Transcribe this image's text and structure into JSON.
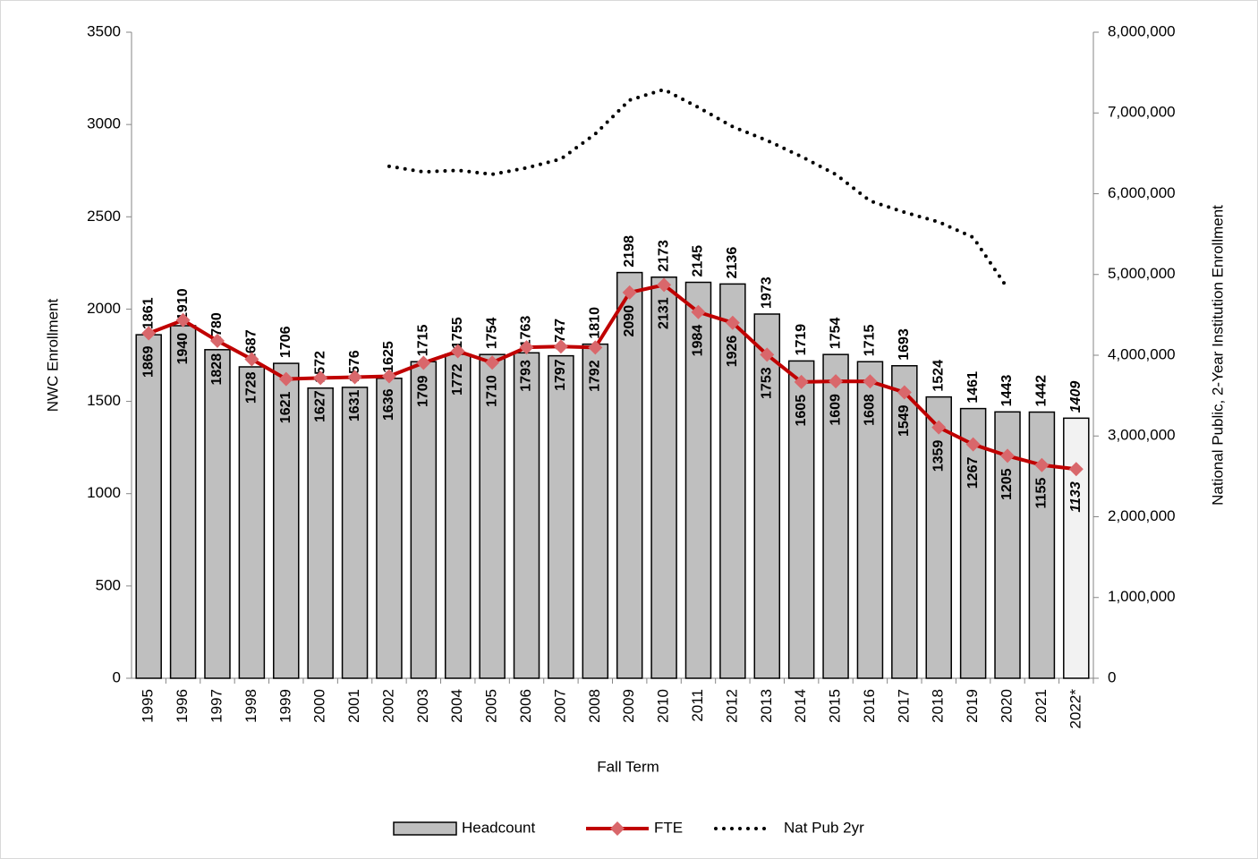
{
  "chart_data": {
    "type": "combo",
    "x_label": "Fall Term",
    "y_label": "NWC Enrollment",
    "y2_label": "National Public, 2-Year Institution Enrollment",
    "categories": [
      "1995",
      "1996",
      "1997",
      "1998",
      "1999",
      "2000",
      "2001",
      "2002",
      "2003",
      "2004",
      "2005",
      "2006",
      "2007",
      "2008",
      "2009",
      "2010",
      "2011",
      "2012",
      "2013",
      "2014",
      "2015",
      "2016",
      "2017",
      "2018",
      "2019",
      "2020",
      "2021",
      "2022*"
    ],
    "ylim": [
      0,
      3500
    ],
    "yticks": [
      0,
      500,
      1000,
      1500,
      2000,
      2500,
      3000,
      3500
    ],
    "y2lim": [
      0,
      8000000
    ],
    "y2ticks": [
      0,
      {
        "value": 1000000,
        "label": "1,000,000"
      },
      {
        "value": 2000000,
        "label": "2,000,000"
      },
      {
        "value": 3000000,
        "label": "3,000,000"
      },
      {
        "value": 4000000,
        "label": "4,000,000"
      },
      {
        "value": 5000000,
        "label": "5,000,000"
      },
      {
        "value": 6000000,
        "label": "6,000,000"
      },
      {
        "value": 7000000,
        "label": "7,000,000"
      },
      {
        "value": 8000000,
        "label": "8,000,000"
      }
    ],
    "series": [
      {
        "name": "Headcount",
        "type": "bar",
        "color": "#bfbfbf",
        "label_color": "#000000",
        "colors": [
          "#bfbfbf",
          "#bfbfbf",
          "#bfbfbf",
          "#bfbfbf",
          "#bfbfbf",
          "#bfbfbf",
          "#bfbfbf",
          "#bfbfbf",
          "#bfbfbf",
          "#bfbfbf",
          "#bfbfbf",
          "#bfbfbf",
          "#bfbfbf",
          "#bfbfbf",
          "#bfbfbf",
          "#bfbfbf",
          "#bfbfbf",
          "#bfbfbf",
          "#bfbfbf",
          "#bfbfbf",
          "#bfbfbf",
          "#bfbfbf",
          "#bfbfbf",
          "#bfbfbf",
          "#bfbfbf",
          "#bfbfbf",
          "#bfbfbf",
          "#f2f2f2"
        ],
        "values": [
          1861,
          1910,
          1780,
          1687,
          1706,
          1572,
          1576,
          1625,
          1715,
          1755,
          1754,
          1763,
          1747,
          1810,
          2198,
          2173,
          2145,
          2136,
          1973,
          1719,
          1754,
          1715,
          1693,
          1524,
          1461,
          1443,
          1442,
          1409
        ]
      },
      {
        "name": "FTE",
        "type": "line",
        "color": "#c00000",
        "marker_color": "#d9676b",
        "label_color": "#ff0000",
        "values": [
          1869,
          1940,
          1828,
          1728,
          1621,
          1627,
          1631,
          1636,
          1709,
          1772,
          1710,
          1793,
          1797,
          1792,
          2090,
          2131,
          1984,
          1926,
          1753,
          1605,
          1609,
          1608,
          1549,
          1359,
          1267,
          1205,
          1155,
          1133
        ]
      },
      {
        "name": "Nat Pub 2yr",
        "type": "dotted",
        "color": "#000000",
        "axis": "y2",
        "values": [
          null,
          null,
          null,
          null,
          null,
          null,
          null,
          6340000,
          6270000,
          6290000,
          6240000,
          6320000,
          6430000,
          6740000,
          7160000,
          7290000,
          7070000,
          6830000,
          6660000,
          6460000,
          6240000,
          5910000,
          5770000,
          5650000,
          5460000,
          4830000,
          null,
          null
        ]
      }
    ],
    "legend": "bottom",
    "border": "#d9d9d9"
  }
}
